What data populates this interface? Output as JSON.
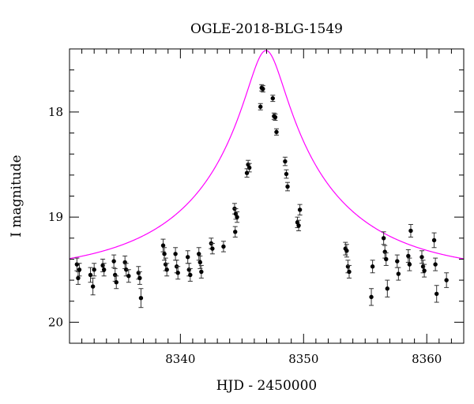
{
  "chart_data": {
    "type": "scatter",
    "title": "OGLE-2018-BLG-1549",
    "xlabel": "HJD - 2450000",
    "ylabel": "I magnitude",
    "xlim": [
      8331,
      8363
    ],
    "ylim": [
      20.2,
      17.4
    ],
    "y_inverted": true,
    "x_ticks": [
      8340,
      8350,
      8360
    ],
    "y_ticks": [
      18,
      19,
      20
    ],
    "grid": false,
    "legend": "none",
    "colors": {
      "points": "#000000",
      "model": "#ff00ff",
      "axes": "#000000"
    },
    "series": [
      {
        "type": "scatter-errorbars",
        "points": [
          {
            "x": 8331.6,
            "y": 19.45,
            "err": 0.06
          },
          {
            "x": 8331.7,
            "y": 19.58,
            "err": 0.06
          },
          {
            "x": 8331.8,
            "y": 19.5,
            "err": 0.06
          },
          {
            "x": 8332.7,
            "y": 19.55,
            "err": 0.07
          },
          {
            "x": 8332.9,
            "y": 19.66,
            "err": 0.08
          },
          {
            "x": 8333.0,
            "y": 19.5,
            "err": 0.06
          },
          {
            "x": 8333.7,
            "y": 19.46,
            "err": 0.06
          },
          {
            "x": 8333.8,
            "y": 19.5,
            "err": 0.06
          },
          {
            "x": 8334.6,
            "y": 19.42,
            "err": 0.06
          },
          {
            "x": 8334.7,
            "y": 19.55,
            "err": 0.06
          },
          {
            "x": 8334.8,
            "y": 19.62,
            "err": 0.06
          },
          {
            "x": 8335.5,
            "y": 19.43,
            "err": 0.06
          },
          {
            "x": 8335.6,
            "y": 19.5,
            "err": 0.06
          },
          {
            "x": 8335.8,
            "y": 19.56,
            "err": 0.06
          },
          {
            "x": 8336.6,
            "y": 19.53,
            "err": 0.06
          },
          {
            "x": 8336.7,
            "y": 19.58,
            "err": 0.06
          },
          {
            "x": 8336.8,
            "y": 19.77,
            "err": 0.09
          },
          {
            "x": 8338.6,
            "y": 19.27,
            "err": 0.06
          },
          {
            "x": 8338.7,
            "y": 19.35,
            "err": 0.06
          },
          {
            "x": 8338.8,
            "y": 19.45,
            "err": 0.06
          },
          {
            "x": 8338.9,
            "y": 19.5,
            "err": 0.06
          },
          {
            "x": 8339.6,
            "y": 19.35,
            "err": 0.06
          },
          {
            "x": 8339.7,
            "y": 19.47,
            "err": 0.06
          },
          {
            "x": 8339.8,
            "y": 19.53,
            "err": 0.06
          },
          {
            "x": 8340.6,
            "y": 19.38,
            "err": 0.06
          },
          {
            "x": 8340.7,
            "y": 19.5,
            "err": 0.06
          },
          {
            "x": 8340.8,
            "y": 19.55,
            "err": 0.06
          },
          {
            "x": 8341.5,
            "y": 19.35,
            "err": 0.06
          },
          {
            "x": 8341.6,
            "y": 19.43,
            "err": 0.06
          },
          {
            "x": 8341.7,
            "y": 19.52,
            "err": 0.06
          },
          {
            "x": 8342.5,
            "y": 19.25,
            "err": 0.05
          },
          {
            "x": 8342.6,
            "y": 19.3,
            "err": 0.05
          },
          {
            "x": 8343.5,
            "y": 19.28,
            "err": 0.05
          },
          {
            "x": 8344.4,
            "y": 18.92,
            "err": 0.05
          },
          {
            "x": 8344.5,
            "y": 18.97,
            "err": 0.05
          },
          {
            "x": 8344.6,
            "y": 19.0,
            "err": 0.05
          },
          {
            "x": 8344.45,
            "y": 19.14,
            "err": 0.05
          },
          {
            "x": 8345.5,
            "y": 18.5,
            "err": 0.04
          },
          {
            "x": 8345.6,
            "y": 18.53,
            "err": 0.04
          },
          {
            "x": 8345.4,
            "y": 18.58,
            "err": 0.04
          },
          {
            "x": 8346.5,
            "y": 17.95,
            "err": 0.03
          },
          {
            "x": 8346.6,
            "y": 17.77,
            "err": 0.03
          },
          {
            "x": 8346.7,
            "y": 17.78,
            "err": 0.03
          },
          {
            "x": 8347.5,
            "y": 17.87,
            "err": 0.03
          },
          {
            "x": 8347.6,
            "y": 18.04,
            "err": 0.03
          },
          {
            "x": 8347.7,
            "y": 18.05,
            "err": 0.03
          },
          {
            "x": 8347.8,
            "y": 18.19,
            "err": 0.03
          },
          {
            "x": 8348.5,
            "y": 18.47,
            "err": 0.04
          },
          {
            "x": 8348.6,
            "y": 18.59,
            "err": 0.04
          },
          {
            "x": 8348.7,
            "y": 18.71,
            "err": 0.04
          },
          {
            "x": 8349.5,
            "y": 19.05,
            "err": 0.05
          },
          {
            "x": 8349.6,
            "y": 19.08,
            "err": 0.05
          },
          {
            "x": 8349.7,
            "y": 18.93,
            "err": 0.05
          },
          {
            "x": 8353.4,
            "y": 19.3,
            "err": 0.06
          },
          {
            "x": 8353.5,
            "y": 19.32,
            "err": 0.06
          },
          {
            "x": 8353.6,
            "y": 19.47,
            "err": 0.06
          },
          {
            "x": 8353.7,
            "y": 19.52,
            "err": 0.06
          },
          {
            "x": 8355.5,
            "y": 19.76,
            "err": 0.08
          },
          {
            "x": 8355.6,
            "y": 19.47,
            "err": 0.06
          },
          {
            "x": 8356.5,
            "y": 19.2,
            "err": 0.06
          },
          {
            "x": 8356.6,
            "y": 19.33,
            "err": 0.06
          },
          {
            "x": 8356.7,
            "y": 19.4,
            "err": 0.06
          },
          {
            "x": 8356.8,
            "y": 19.68,
            "err": 0.08
          },
          {
            "x": 8357.6,
            "y": 19.42,
            "err": 0.06
          },
          {
            "x": 8357.7,
            "y": 19.54,
            "err": 0.06
          },
          {
            "x": 8358.5,
            "y": 19.37,
            "err": 0.06
          },
          {
            "x": 8358.6,
            "y": 19.45,
            "err": 0.06
          },
          {
            "x": 8358.7,
            "y": 19.13,
            "err": 0.06
          },
          {
            "x": 8359.6,
            "y": 19.38,
            "err": 0.06
          },
          {
            "x": 8359.7,
            "y": 19.47,
            "err": 0.06
          },
          {
            "x": 8359.8,
            "y": 19.51,
            "err": 0.06
          },
          {
            "x": 8360.6,
            "y": 19.22,
            "err": 0.07
          },
          {
            "x": 8360.7,
            "y": 19.45,
            "err": 0.06
          },
          {
            "x": 8360.8,
            "y": 19.73,
            "err": 0.08
          },
          {
            "x": 8361.6,
            "y": 19.6,
            "err": 0.07
          }
        ]
      },
      {
        "type": "model-line",
        "t0": 8346.95,
        "u0": 0.12,
        "tE": 12,
        "I_source": 19.75,
        "I_blend": 21.45
      }
    ]
  }
}
